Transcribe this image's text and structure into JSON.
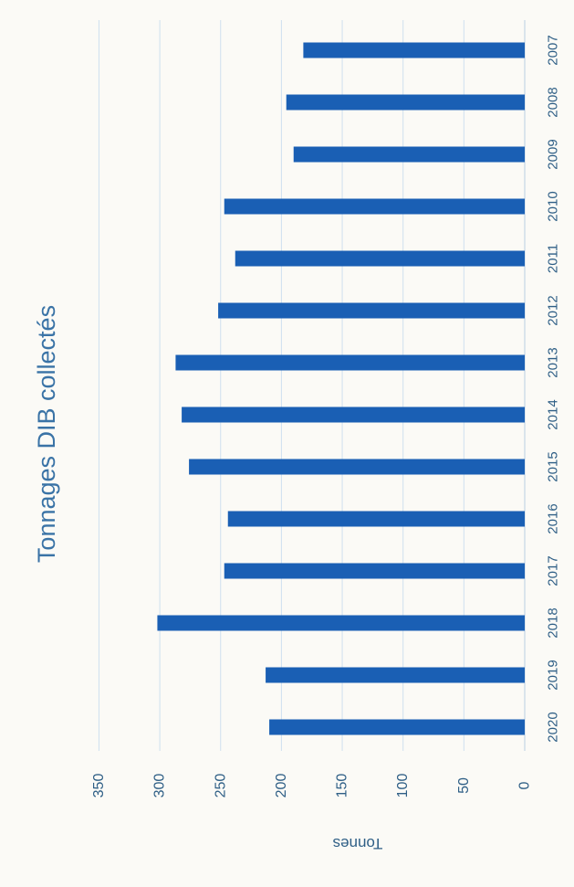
{
  "chart_data": {
    "type": "bar",
    "orientation": "rotated",
    "title": "Tonnages DIB collectés",
    "ylabel": "Tonnes",
    "xlabel": "",
    "categories": [
      "2007",
      "2008",
      "2009",
      "2010",
      "2011",
      "2012",
      "2013",
      "2014",
      "2015",
      "2016",
      "2017",
      "2018",
      "2019",
      "2020"
    ],
    "values": [
      182,
      196,
      190,
      247,
      238,
      252,
      287,
      282,
      276,
      244,
      247,
      302,
      213,
      210
    ],
    "ylim": [
      0,
      350
    ],
    "yticks": [
      0,
      50,
      100,
      150,
      200,
      250,
      300,
      350
    ],
    "grid": true,
    "legend": false,
    "colors": {
      "bar": "#1a5fb4",
      "grid": "#cfe0ef",
      "text": "#2f5f86",
      "title": "#3a73a6",
      "background": "#fbfaf6"
    }
  }
}
